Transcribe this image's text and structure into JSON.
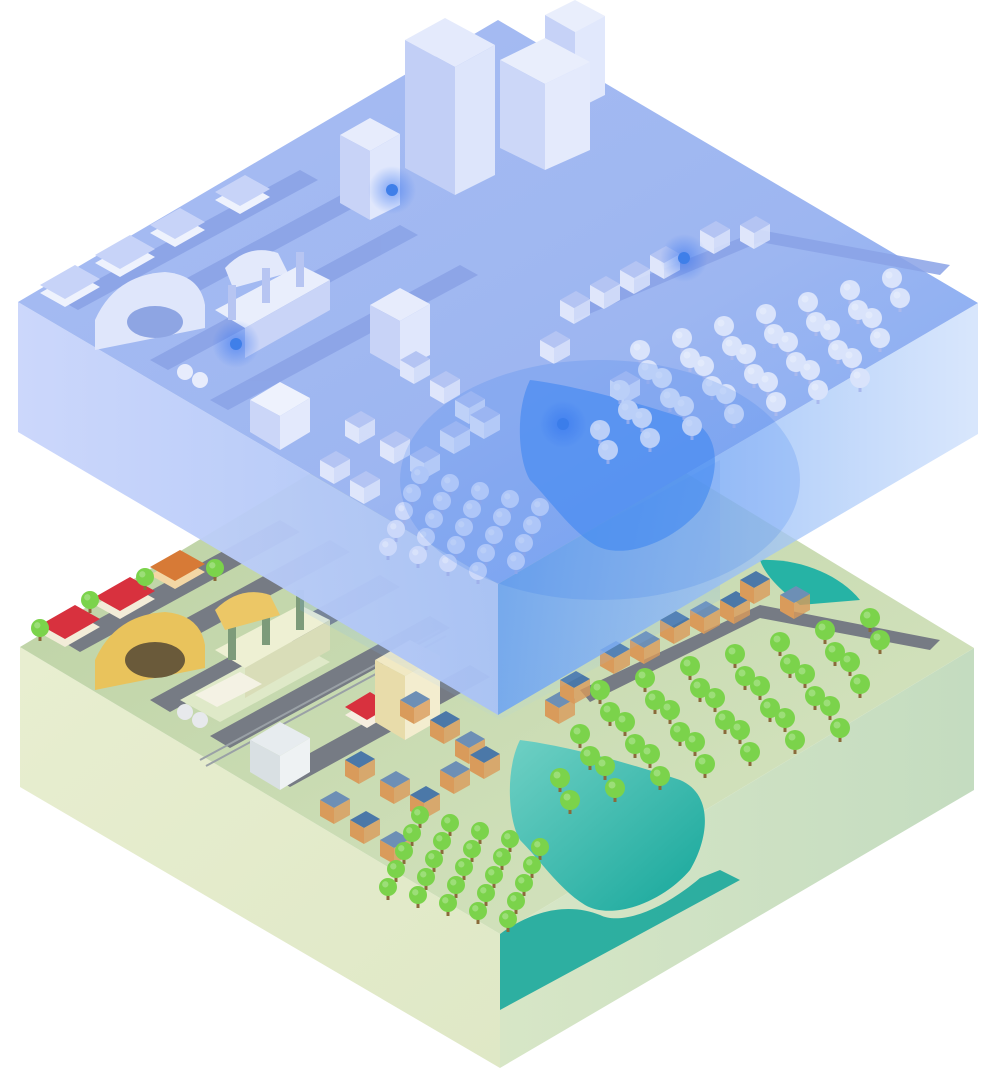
{
  "image": {
    "subject": "isometric-city-digital-twin",
    "layers": [
      {
        "name": "digital-twin-layer",
        "style": "translucent-blue"
      },
      {
        "name": "physical-city-layer",
        "style": "colored-terrain"
      }
    ]
  },
  "colors": {
    "background": "#ffffff",
    "twin_top": "#b7c8f4",
    "twin_side_left": "#c4d2fb",
    "twin_side_right": "#9cc0f7",
    "twin_building": "#dfe6fb",
    "twin_glow": "#3a7cf0",
    "ground_top": "#cfe0b8",
    "ground_side_left": "#e6edcd",
    "ground_side_right": "#cfe2c0",
    "road": "#6f747c",
    "water": "#2bb5a8",
    "tree": "#7bd34b",
    "roof_red": "#d8313e",
    "roof_blue": "#4b78a8",
    "wall_orange": "#d99b5b",
    "wall_cream": "#f1e9c4",
    "tunnel_yellow": "#e9c35c"
  },
  "icons": [
    "tree-icon",
    "house-icon",
    "tower-icon",
    "factory-icon",
    "tunnel-icon",
    "lake-icon"
  ]
}
